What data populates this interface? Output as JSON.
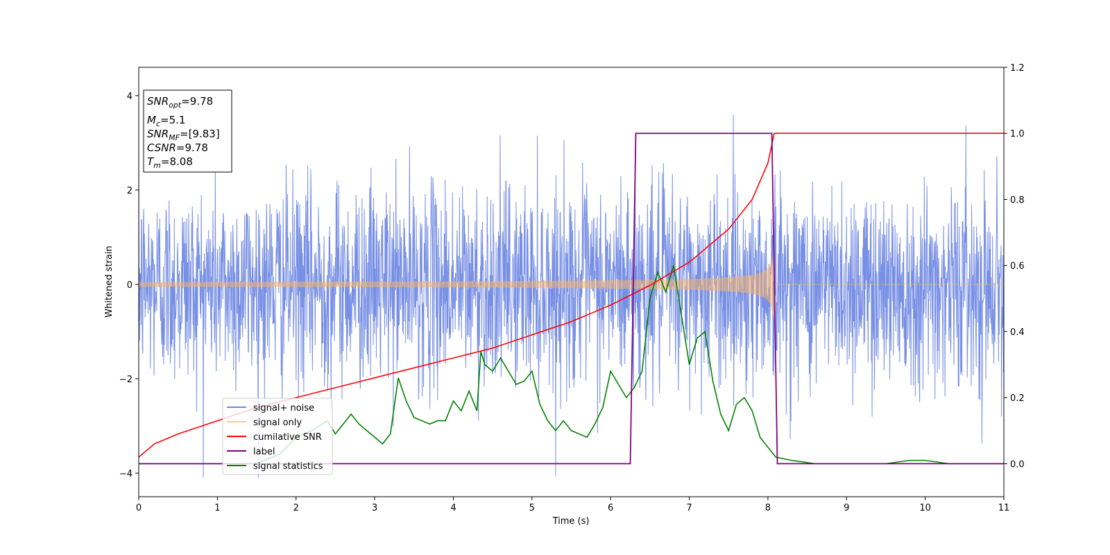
{
  "chart_data": {
    "type": "line",
    "title": "",
    "xlabel": "Time (s)",
    "ylabel": "Whitened strain",
    "y2label": "",
    "xlim": [
      0,
      11
    ],
    "ylim": [
      -4.5,
      4.6
    ],
    "y2lim": [
      -0.1,
      1.2
    ],
    "x_ticks": [
      "0",
      "1",
      "2",
      "3",
      "4",
      "5",
      "6",
      "7",
      "8",
      "9",
      "10",
      "11"
    ],
    "y_ticks": [
      "−4",
      "−2",
      "0",
      "2",
      "4"
    ],
    "y2_ticks": [
      "0.0",
      "0.2",
      "0.4",
      "0.6",
      "0.8",
      "1.0",
      "1.2"
    ],
    "grid": false,
    "legend_position": "lower-left",
    "series": [
      {
        "name": "signal+ noise",
        "axis": "left",
        "color": "#6b86e3",
        "description": "Gaussian-like noise around 0 with spread about ±1.6 and spikes up to about ±4"
      },
      {
        "name": "signal only",
        "axis": "left",
        "color": "#f5b26b",
        "chirp": {
          "x_start": 0.0,
          "x_merger": 8.08,
          "amplitude_start": 0.05,
          "amplitude_merger": 0.7
        }
      },
      {
        "name": "cumilative SNR",
        "axis": "right",
        "color": "#ff0000",
        "x": [
          0.0,
          0.2,
          0.5,
          1.0,
          1.5,
          2.0,
          2.5,
          3.0,
          3.5,
          4.0,
          4.5,
          5.0,
          5.5,
          6.0,
          6.5,
          7.0,
          7.5,
          7.8,
          8.0,
          8.08,
          11.0
        ],
        "y": [
          0.02,
          0.06,
          0.09,
          0.13,
          0.17,
          0.2,
          0.23,
          0.26,
          0.29,
          0.32,
          0.35,
          0.39,
          0.43,
          0.48,
          0.54,
          0.61,
          0.71,
          0.8,
          0.91,
          1.0,
          1.0
        ]
      },
      {
        "name": "label",
        "axis": "right",
        "color": "#800080",
        "x": [
          0.0,
          6.25,
          6.32,
          8.05,
          8.12,
          11.0
        ],
        "y": [
          0.0,
          0.0,
          1.0,
          1.0,
          0.0,
          0.0
        ]
      },
      {
        "name": "signal statistics",
        "axis": "right",
        "color": "#008000",
        "x": [
          0.0,
          1.5,
          1.8,
          2.0,
          2.2,
          2.4,
          2.5,
          2.6,
          2.7,
          2.8,
          2.9,
          3.0,
          3.1,
          3.2,
          3.3,
          3.4,
          3.5,
          3.6,
          3.7,
          3.8,
          3.9,
          4.0,
          4.1,
          4.2,
          4.3,
          4.35,
          4.4,
          4.5,
          4.6,
          4.7,
          4.8,
          4.9,
          5.0,
          5.1,
          5.2,
          5.3,
          5.4,
          5.5,
          5.6,
          5.7,
          5.8,
          5.9,
          6.0,
          6.1,
          6.2,
          6.3,
          6.4,
          6.5,
          6.6,
          6.7,
          6.8,
          6.9,
          7.0,
          7.1,
          7.2,
          7.3,
          7.4,
          7.5,
          7.6,
          7.7,
          7.8,
          7.9,
          8.0,
          8.1,
          8.3,
          8.6,
          9.0,
          9.5,
          9.8,
          10.0,
          10.3,
          10.6,
          11.0
        ],
        "y": [
          0.0,
          0.0,
          0.03,
          0.08,
          0.1,
          0.13,
          0.09,
          0.12,
          0.15,
          0.12,
          0.1,
          0.08,
          0.06,
          0.09,
          0.26,
          0.19,
          0.14,
          0.13,
          0.12,
          0.13,
          0.13,
          0.19,
          0.16,
          0.22,
          0.16,
          0.34,
          0.3,
          0.28,
          0.32,
          0.28,
          0.24,
          0.25,
          0.28,
          0.18,
          0.13,
          0.1,
          0.13,
          0.1,
          0.09,
          0.08,
          0.12,
          0.17,
          0.28,
          0.24,
          0.2,
          0.23,
          0.28,
          0.5,
          0.58,
          0.52,
          0.6,
          0.45,
          0.3,
          0.38,
          0.4,
          0.25,
          0.15,
          0.1,
          0.18,
          0.2,
          0.16,
          0.08,
          0.05,
          0.02,
          0.01,
          0.0,
          0.0,
          0.0,
          0.01,
          0.01,
          0.0,
          0.0,
          0.0
        ]
      }
    ]
  },
  "annotation": {
    "snr_opt_main": "SNR",
    "snr_opt_sub": "opt",
    "snr_opt_value": "=9.78",
    "mc_main": "M",
    "mc_sub": "c",
    "mc_value": "=5.1",
    "snr_mf_main": "SNR",
    "snr_mf_sub": "MF",
    "snr_mf_value": "=[9.83]",
    "csnr_main": "CSNR",
    "csnr_value": "=9.78",
    "tm_main": "T",
    "tm_sub": "m",
    "tm_value": "=8.08"
  }
}
